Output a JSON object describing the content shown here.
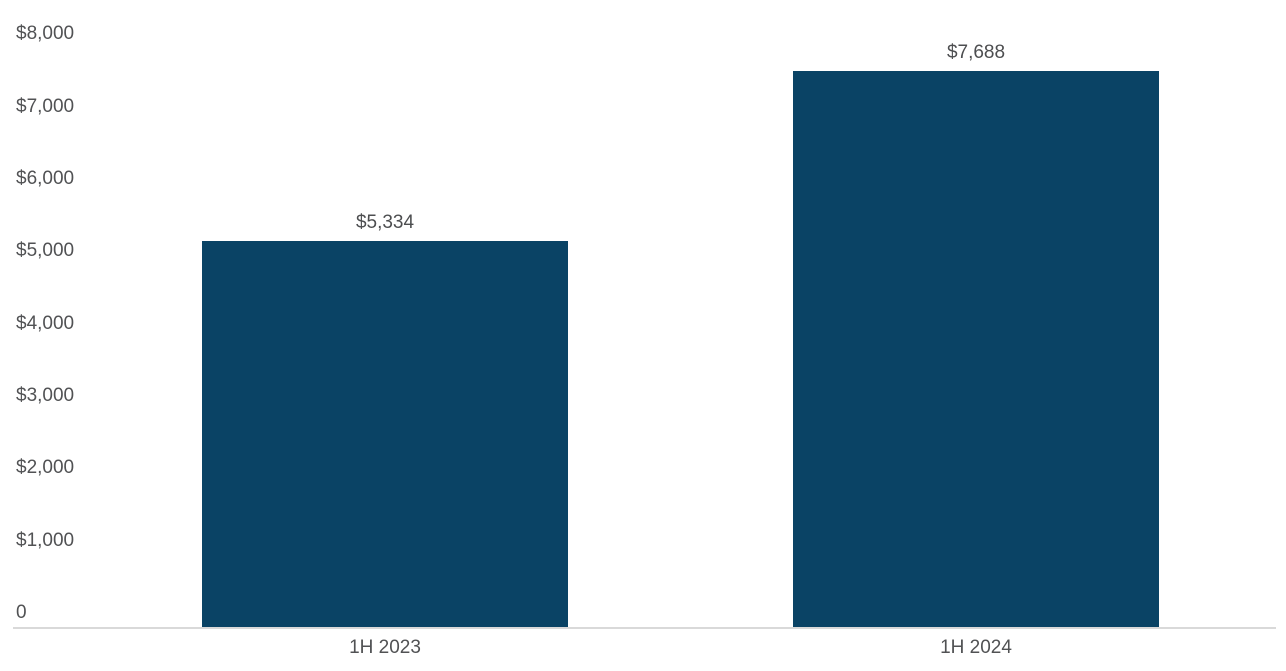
{
  "chart_data": {
    "type": "bar",
    "categories": [
      "1H 2023",
      "1H 2024"
    ],
    "values": [
      5334,
      7688
    ],
    "value_labels": [
      "$5,334",
      "$7,688"
    ],
    "y_ticks": [
      {
        "value": 8000,
        "label": "$8,000"
      },
      {
        "value": 7000,
        "label": "$7,000"
      },
      {
        "value": 6000,
        "label": "$6,000"
      },
      {
        "value": 5000,
        "label": "$5,000"
      },
      {
        "value": 4000,
        "label": "$4,000"
      },
      {
        "value": 3000,
        "label": "$3,000"
      },
      {
        "value": 2000,
        "label": "$2,000"
      },
      {
        "value": 1000,
        "label": "$1,000"
      },
      {
        "value": 0,
        "label": "0"
      }
    ],
    "title": "",
    "xlabel": "",
    "ylabel": "",
    "ylim": [
      0,
      8000
    ],
    "grid": false,
    "legend": "none",
    "colors": {
      "bar": "#0a4365",
      "axis_line": "#d9d9d9",
      "tick_label": "#515254",
      "value_label": "#4d4e50"
    }
  }
}
